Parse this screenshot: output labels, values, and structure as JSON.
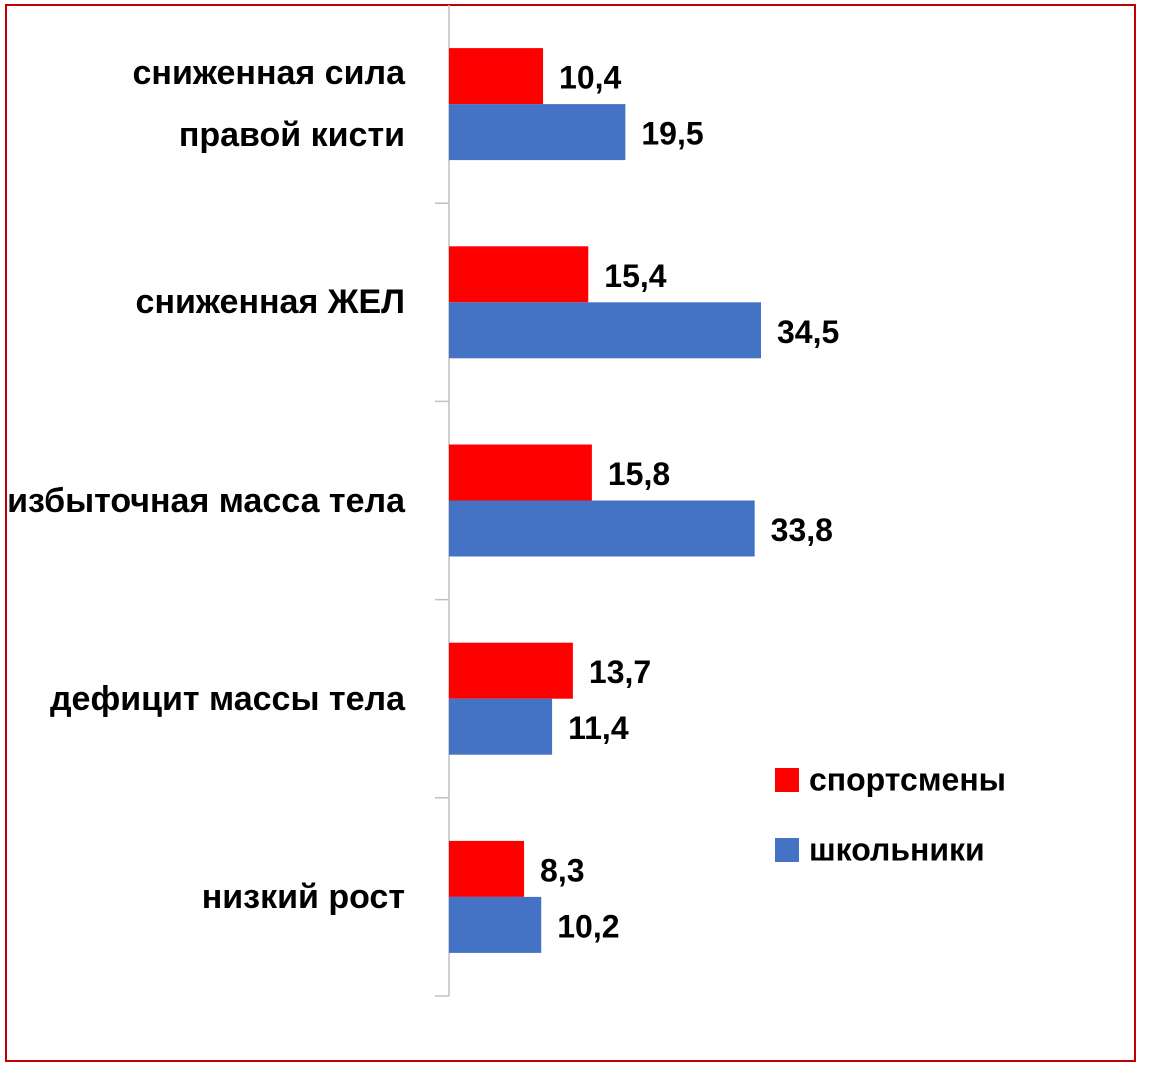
{
  "chart_data": {
    "type": "barh",
    "categories": [
      "сниженная сила правой кисти",
      "сниженная ЖЕЛ",
      "избыточная масса тела",
      "дефицит массы тела",
      "низкий рост"
    ],
    "series": [
      {
        "name": "спортсмены",
        "color": "#ff0000",
        "values": [
          10.4,
          15.4,
          15.8,
          13.7,
          8.3
        ],
        "value_labels": [
          "10,4",
          "15,4",
          "15,8",
          "13,7",
          "8,3"
        ]
      },
      {
        "name": "школьники",
        "color": "#4472c4",
        "values": [
          19.5,
          34.5,
          33.8,
          11.4,
          10.2
        ],
        "value_labels": [
          "19,5",
          "34,5",
          "33,8",
          "11,4",
          "10,2"
        ]
      }
    ],
    "legend": "right"
  }
}
